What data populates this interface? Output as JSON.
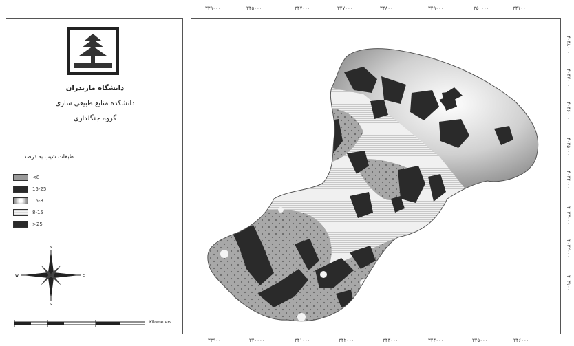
{
  "institution": {
    "university": "دانشگاه مازندران",
    "faculty": "دانشکده منابع طبیعی ساری",
    "department": "گروه جنگلداری"
  },
  "legend": {
    "title": "طبقات شیب به درصد",
    "items": [
      {
        "label": "<8",
        "pattern": "dots-gray"
      },
      {
        "label": "15-25",
        "pattern": "dark"
      },
      {
        "label": "15-8",
        "pattern": "gradient-light"
      },
      {
        "label": "8-15",
        "pattern": "lines"
      },
      {
        "label": ">25",
        "pattern": "dark"
      }
    ]
  },
  "north_arrow": {
    "n": "N",
    "s": "S",
    "e": "E",
    "w": "W"
  },
  "scale_bar": {
    "unit": "Kilometers"
  },
  "axis_labels": {
    "top": [
      "۳۳۹۰۰۰",
      "۳۴۵۰۰۰",
      "۳۴۷۰۰۰",
      "۳۴۷۰۰۰",
      "۳۴۸۰۰۰",
      "۳۴۹۰۰۰",
      "۳۵۰۰۰۰",
      "۳۴۱۰۰۰"
    ],
    "bottom": [
      "۳۳۹۰۰۰",
      "۳۴۰۰۰۰",
      "۳۴۱۰۰۰",
      "۳۴۲۰۰۰",
      "۳۴۳۰۰۰",
      "۳۴۴۰۰۰",
      "۳۴۵۰۰۰",
      "۳۴۶۰۰۰"
    ],
    "right": [
      "۴۰۳۸۰۰۰",
      "۴۰۳۷۰۰۰",
      "۴۰۳۶۰۰۰",
      "۴۰۳۵۰۰۰",
      "۴۰۳۴۰۰۰",
      "۴۰۳۳۰۰۰",
      "۴۰۳۲۰۰۰",
      "۴۰۳۱۰۰۰"
    ]
  },
  "colors": {
    "dark": "#2a2a2a",
    "dots": "#9a9a9a",
    "lines": "#dcdcdc"
  }
}
